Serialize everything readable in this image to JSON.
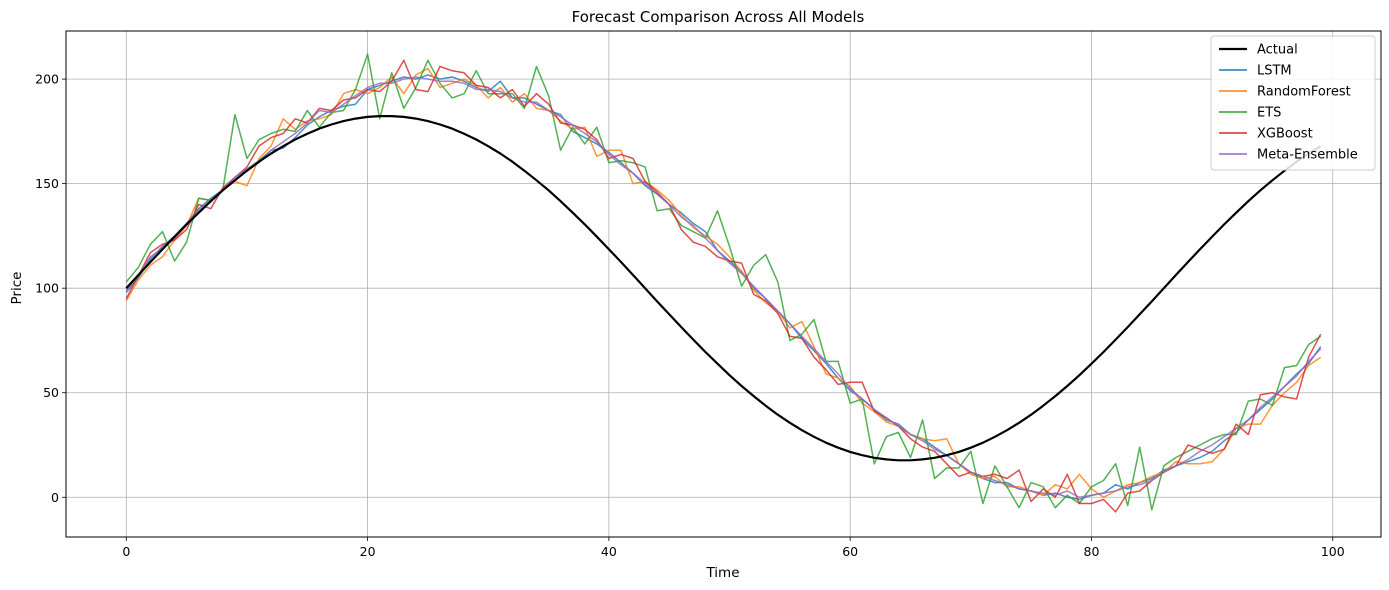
{
  "chart_data": {
    "type": "line",
    "title": "Forecast Comparison Across All Models",
    "xlabel": "Time",
    "ylabel": "Price",
    "xlim": [
      -5,
      104
    ],
    "ylim": [
      -19,
      223
    ],
    "xticks": [
      0,
      20,
      40,
      60,
      80,
      100
    ],
    "yticks": [
      0,
      50,
      100,
      150,
      200
    ],
    "grid": true,
    "legend_position": "top-right",
    "x": [
      0,
      1,
      2,
      3,
      4,
      5,
      6,
      7,
      8,
      9,
      10,
      11,
      12,
      13,
      14,
      15,
      16,
      17,
      18,
      19,
      20,
      21,
      22,
      23,
      24,
      25,
      26,
      27,
      28,
      29,
      30,
      31,
      32,
      33,
      34,
      35,
      36,
      37,
      38,
      39,
      40,
      41,
      42,
      43,
      44,
      45,
      46,
      47,
      48,
      49,
      50,
      51,
      52,
      53,
      54,
      55,
      56,
      57,
      58,
      59,
      60,
      61,
      62,
      63,
      64,
      65,
      66,
      67,
      68,
      69,
      70,
      71,
      72,
      73,
      74,
      75,
      76,
      77,
      78,
      79,
      80,
      81,
      82,
      83,
      84,
      85,
      86,
      87,
      88,
      89,
      90,
      91,
      92,
      93,
      94,
      95,
      96,
      97,
      98,
      99
    ],
    "series": [
      {
        "name": "Actual",
        "color": "#000000",
        "width": 2.2,
        "values": [
          100,
          106.3,
          112.5,
          118.6,
          124.6,
          130.5,
          136.1,
          141.6,
          146.8,
          151.6,
          156.2,
          160.5,
          164.4,
          167.9,
          171.1,
          173.9,
          176.3,
          178.3,
          179.9,
          181.1,
          181.9,
          182.3,
          182.3,
          181.9,
          181.1,
          179.9,
          178.3,
          176.3,
          173.9,
          171.1,
          167.9,
          164.4,
          160.5,
          156.2,
          151.6,
          146.8,
          141.6,
          136.1,
          130.5,
          124.6,
          118.6,
          112.5,
          106.3,
          100,
          93.7,
          87.5,
          81.4,
          75.4,
          69.5,
          63.9,
          58.4,
          53.2,
          48.4,
          43.8,
          39.5,
          35.6,
          32.1,
          28.9,
          26.1,
          23.7,
          21.7,
          20.1,
          18.9,
          18.1,
          17.7,
          17.7,
          18.1,
          18.9,
          20.1,
          21.7,
          23.7,
          26.1,
          28.9,
          32.1,
          35.6,
          39.5,
          43.8,
          48.4,
          53.2,
          58.4,
          63.9,
          69.5,
          75.4,
          81.4,
          87.5,
          93.7,
          100,
          106.3,
          112.5,
          118.6,
          124.6,
          130.5,
          136.1,
          141.6,
          146.8,
          151.6,
          156.2,
          160.5,
          164.4,
          167.9
        ]
      },
      {
        "name": "LSTM",
        "color": "#1f77b4",
        "width": 1.5,
        "values": [
          98,
          105,
          114,
          120,
          125,
          131,
          138,
          143,
          147,
          153,
          157,
          161,
          166,
          167,
          172,
          178,
          182,
          185,
          187,
          188,
          195,
          197,
          199,
          201,
          200,
          202,
          200,
          201,
          199,
          196,
          194,
          199,
          191,
          191,
          188,
          185,
          183,
          175,
          172,
          169,
          165,
          160,
          155,
          149,
          145,
          140,
          136,
          131,
          127,
          118,
          113,
          108,
          100,
          95,
          89,
          83,
          76,
          70,
          64,
          57,
          51,
          47,
          42,
          37,
          35,
          30,
          28,
          24,
          20,
          16,
          12,
          9,
          7,
          7,
          4,
          3,
          1,
          2,
          0,
          -1,
          1,
          2,
          6,
          4,
          7,
          9,
          13,
          15,
          17,
          19,
          22,
          27,
          31,
          37,
          42,
          47,
          53,
          59,
          64,
          72
        ]
      },
      {
        "name": "RandomForest",
        "color": "#ff7f0e",
        "width": 1.5,
        "values": [
          94,
          104,
          111,
          115,
          123,
          130,
          143,
          142,
          147,
          151,
          149,
          162,
          168,
          181,
          176,
          180,
          181,
          183,
          193,
          195,
          193,
          196,
          201,
          193,
          202,
          205,
          196,
          198,
          200,
          197,
          191,
          196,
          189,
          193,
          186,
          185,
          180,
          176,
          177,
          163,
          166,
          166,
          150,
          151,
          147,
          142,
          135,
          129,
          125,
          121,
          115,
          108,
          99,
          93,
          89,
          81,
          84,
          72,
          59,
          57,
          53,
          45,
          41,
          36,
          34,
          30,
          28,
          27,
          28,
          16,
          11,
          9,
          10,
          5,
          5,
          3,
          1,
          6,
          4,
          11,
          4,
          0,
          3,
          6,
          7,
          10,
          12,
          17,
          16,
          16,
          17,
          23,
          33,
          35,
          35,
          44,
          50,
          55,
          63,
          67
        ]
      },
      {
        "name": "ETS",
        "color": "#2ca02c",
        "width": 1.5,
        "values": [
          103,
          110,
          121,
          127,
          113,
          122,
          143,
          142,
          147,
          183,
          162,
          171,
          174,
          176,
          175,
          185,
          177,
          184,
          185,
          195,
          212,
          181,
          203,
          186,
          196,
          209,
          198,
          191,
          193,
          204,
          193,
          193,
          193,
          186,
          206,
          192,
          166,
          177,
          169,
          177,
          160,
          161,
          160,
          158,
          137,
          138,
          130,
          127,
          124,
          137,
          120,
          101,
          111,
          116,
          103,
          75,
          78,
          85,
          65,
          65,
          45,
          47,
          16,
          29,
          31,
          19,
          37,
          9,
          14,
          14,
          22,
          -3,
          15,
          5,
          -5,
          7,
          5,
          -5,
          1,
          -3,
          5,
          8,
          16,
          -4,
          24,
          -6,
          15,
          19,
          22,
          25,
          28,
          30,
          30,
          46,
          47,
          44,
          62,
          63,
          73,
          77
        ]
      },
      {
        "name": "XGBoost",
        "color": "#d62728",
        "width": 1.5,
        "values": [
          95,
          106,
          117,
          121,
          123,
          128,
          140,
          138,
          148,
          153,
          158,
          168,
          172,
          174,
          181,
          179,
          186,
          185,
          190,
          191,
          195,
          194,
          199,
          209,
          195,
          194,
          206,
          204,
          203,
          197,
          196,
          191,
          195,
          187,
          193,
          188,
          179,
          178,
          176,
          171,
          162,
          164,
          162,
          151,
          146,
          140,
          128,
          122,
          120,
          115,
          113,
          112,
          97,
          94,
          88,
          77,
          76,
          67,
          61,
          54,
          55,
          55,
          41,
          38,
          34,
          28,
          24,
          22,
          16,
          10,
          12,
          10,
          11,
          9,
          13,
          -2,
          4,
          0,
          11,
          -3,
          -3,
          -1,
          -7,
          2,
          3,
          8,
          12,
          15,
          25,
          23,
          21,
          23,
          35,
          30,
          49,
          50,
          48,
          47,
          67,
          78
        ]
      },
      {
        "name": "Meta-Ensemble",
        "color": "#9467bd",
        "width": 1.5,
        "values": [
          99,
          106,
          115,
          119,
          124,
          131,
          137,
          142,
          147,
          153,
          157,
          160,
          166,
          170,
          174,
          179,
          185,
          184,
          188,
          192,
          196,
          198,
          198,
          200,
          201,
          200,
          199,
          199,
          198,
          195,
          195,
          194,
          191,
          189,
          189,
          185,
          182,
          178,
          174,
          170,
          164,
          159,
          155,
          150,
          145,
          140,
          134,
          130,
          124,
          118,
          112,
          107,
          101,
          95,
          89,
          83,
          77,
          71,
          65,
          59,
          52,
          47,
          42,
          38,
          34,
          30,
          27,
          23,
          20,
          16,
          12,
          10,
          8,
          6,
          4,
          3,
          2,
          1,
          3,
          0,
          1,
          2,
          3,
          5,
          6,
          8,
          12,
          15,
          18,
          22,
          25,
          29,
          33,
          37,
          43,
          48,
          53,
          58,
          65,
          71
        ]
      }
    ]
  }
}
